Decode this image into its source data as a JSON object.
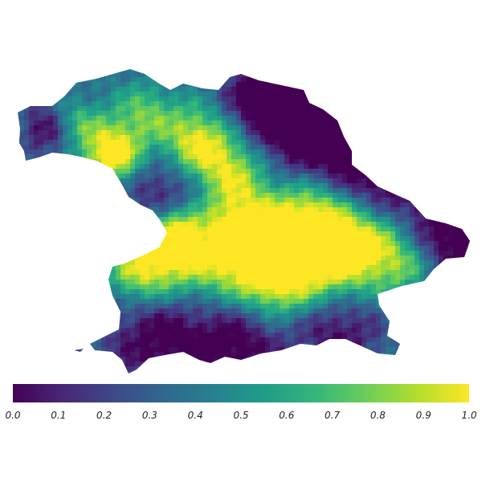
{
  "map": {
    "region": "Bavaria",
    "value_range": [
      0.0,
      1.0
    ],
    "colormap": "viridis",
    "colormap_stops": [
      "#440154",
      "#482878",
      "#3e4989",
      "#31688e",
      "#26828e",
      "#1f9e89",
      "#35b779",
      "#6ece58",
      "#b5de2b",
      "#fde725"
    ]
  },
  "colorbar": {
    "tick_labels": [
      "0.0",
      "0.1",
      "0.2",
      "0.3",
      "0.4",
      "0.5",
      "0.6",
      "0.7",
      "0.8",
      "0.9",
      "1.0"
    ]
  }
}
